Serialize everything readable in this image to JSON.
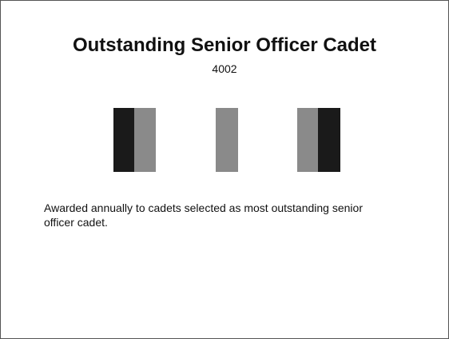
{
  "slide": {
    "title": "Outstanding Senior Officer Cadet",
    "code": "4002",
    "description": "Awarded annually to cadets selected as most outstanding senior officer cadet."
  },
  "ribbon": {
    "colors": {
      "dark": "#1a1a1a",
      "grey": "#8a8a8a"
    },
    "groups": [
      {
        "stripes": [
          "dark",
          "grey"
        ]
      },
      {
        "stripes": [
          "grey"
        ]
      },
      {
        "stripes": [
          "grey",
          "dark"
        ]
      }
    ]
  }
}
